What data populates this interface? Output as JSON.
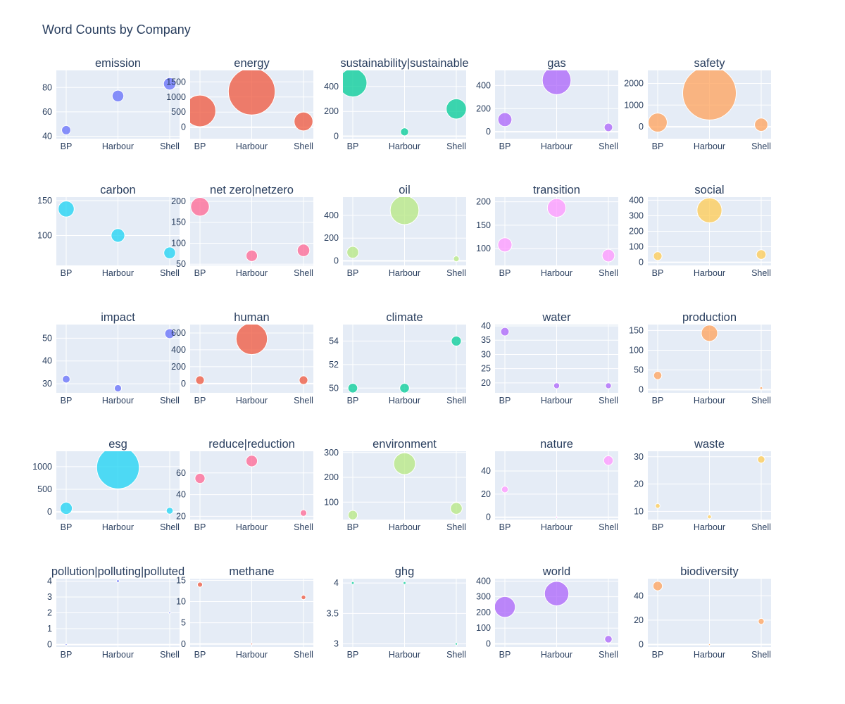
{
  "title": "Word Counts by Company",
  "colors": [
    "#636efa",
    "#EF553B",
    "#00cc96",
    "#ab63fa",
    "#FFA15A",
    "#19d3f3",
    "#FF6692",
    "#B6E880",
    "#FF97FF",
    "#FECB52"
  ],
  "chart_data": {
    "type": "scatter",
    "x_categories": [
      "BP",
      "Harbour",
      "Shell"
    ],
    "subplots": [
      {
        "title": "emission",
        "values": [
          45,
          73,
          83
        ],
        "yticks": [
          40,
          60,
          80
        ],
        "ylim": [
          38,
          94
        ]
      },
      {
        "title": "energy",
        "values": [
          540,
          1180,
          190
        ],
        "yticks": [
          0,
          500,
          1000,
          1500
        ],
        "ylim": [
          -380,
          1880
        ]
      },
      {
        "title": "sustainability|sustainable",
        "values": [
          430,
          35,
          220
        ],
        "yticks": [
          0,
          200,
          400
        ],
        "ylim": [
          -20,
          530
        ]
      },
      {
        "title": "gas",
        "values": [
          105,
          445,
          38
        ],
        "yticks": [
          0,
          200,
          400
        ],
        "ylim": [
          -60,
          530
        ]
      },
      {
        "title": "safety",
        "values": [
          195,
          1550,
          95
        ],
        "yticks": [
          0,
          1000,
          2000
        ],
        "ylim": [
          -550,
          2600
        ]
      },
      {
        "title": "carbon",
        "values": [
          138,
          100,
          75
        ],
        "yticks": [
          100,
          150
        ],
        "ylim": [
          57,
          155
        ]
      },
      {
        "title": "net zero|netzero",
        "values": [
          187,
          70,
          83
        ],
        "yticks": [
          50,
          100,
          150,
          200
        ],
        "ylim": [
          47,
          210
        ]
      },
      {
        "title": "oil",
        "values": [
          75,
          445,
          18
        ],
        "yticks": [
          0,
          200,
          400
        ],
        "ylim": [
          -40,
          560
        ]
      },
      {
        "title": "transition",
        "values": [
          108,
          187,
          85
        ],
        "yticks": [
          100,
          150,
          200
        ],
        "ylim": [
          64,
          210
        ]
      },
      {
        "title": "social",
        "values": [
          40,
          335,
          50
        ],
        "yticks": [
          0,
          100,
          200,
          300,
          400
        ],
        "ylim": [
          -20,
          420
        ]
      },
      {
        "title": "impact",
        "values": [
          32,
          28,
          52
        ],
        "yticks": [
          30,
          40,
          50
        ],
        "ylim": [
          26,
          56
        ]
      },
      {
        "title": "human",
        "values": [
          40,
          530,
          40
        ],
        "yticks": [
          0,
          200,
          400,
          600
        ],
        "ylim": [
          -110,
          700
        ]
      },
      {
        "title": "climate",
        "values": [
          50,
          50,
          54
        ],
        "yticks": [
          50,
          52,
          54
        ],
        "ylim": [
          49.6,
          55.4
        ]
      },
      {
        "title": "water",
        "values": [
          38,
          19,
          19
        ],
        "yticks": [
          20,
          25,
          30,
          35,
          40
        ],
        "ylim": [
          16.5,
          40.5
        ]
      },
      {
        "title": "production",
        "values": [
          36,
          143,
          4
        ],
        "yticks": [
          0,
          50,
          100,
          150
        ],
        "ylim": [
          -8,
          165
        ]
      },
      {
        "title": "esg",
        "values": [
          80,
          980,
          25
        ],
        "yticks": [
          0,
          500,
          1000
        ],
        "ylim": [
          -170,
          1340
        ]
      },
      {
        "title": "reduce|reduction",
        "values": [
          55,
          71,
          23
        ],
        "yticks": [
          20,
          40,
          60
        ],
        "ylim": [
          17,
          80
        ]
      },
      {
        "title": "environment",
        "values": [
          48,
          255,
          75
        ],
        "yticks": [
          100,
          200,
          300
        ],
        "ylim": [
          30,
          305
        ]
      },
      {
        "title": "nature",
        "values": [
          24,
          0,
          49
        ],
        "yticks": [
          0,
          20,
          40
        ],
        "ylim": [
          -2,
          57
        ]
      },
      {
        "title": "waste",
        "values": [
          12,
          8,
          29
        ],
        "yticks": [
          10,
          20,
          30
        ],
        "ylim": [
          7,
          32
        ]
      },
      {
        "title": "pollution|polluting|polluted",
        "values": [
          0,
          4,
          2
        ],
        "yticks": [
          0,
          1,
          2,
          3,
          4
        ],
        "ylim": [
          -0.15,
          4.15
        ]
      },
      {
        "title": "methane",
        "values": [
          14,
          0,
          11
        ],
        "yticks": [
          0,
          5,
          10,
          15
        ],
        "ylim": [
          -0.7,
          15.4
        ]
      },
      {
        "title": "ghg",
        "values": [
          4,
          4,
          3
        ],
        "yticks": [
          3,
          3.5,
          4
        ],
        "ylim": [
          2.95,
          4.07
        ]
      },
      {
        "title": "world",
        "values": [
          235,
          320,
          30
        ],
        "yticks": [
          0,
          100,
          200,
          300,
          400
        ],
        "ylim": [
          -20,
          415
        ]
      },
      {
        "title": "biodiversity",
        "values": [
          48,
          0,
          19
        ],
        "yticks": [
          0,
          20,
          40
        ],
        "ylim": [
          -2,
          54
        ]
      }
    ]
  }
}
